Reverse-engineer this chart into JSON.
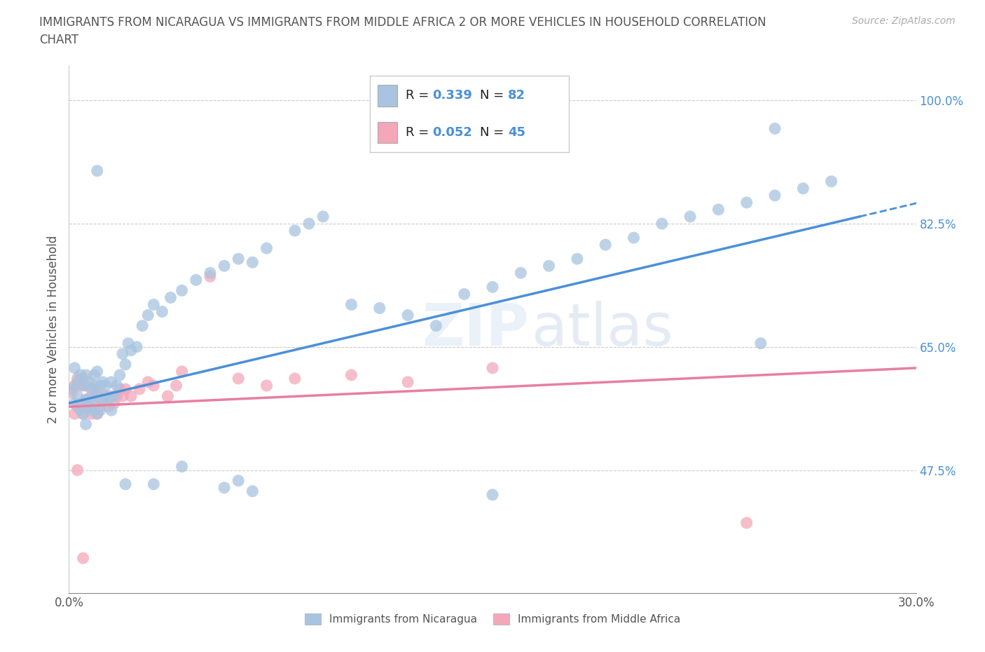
{
  "title": "IMMIGRANTS FROM NICARAGUA VS IMMIGRANTS FROM MIDDLE AFRICA 2 OR MORE VEHICLES IN HOUSEHOLD CORRELATION\nCHART",
  "source": "Source: ZipAtlas.com",
  "ylabel": "2 or more Vehicles in Household",
  "xmin": 0.0,
  "xmax": 0.3,
  "ymin": 0.3,
  "ymax": 1.05,
  "ytick_positions": [
    0.475,
    0.65,
    0.825,
    1.0
  ],
  "ytick_labels_right": [
    "47.5%",
    "65.0%",
    "82.5%",
    "100.0%"
  ],
  "xtick_positions": [
    0.0,
    0.05,
    0.1,
    0.15,
    0.2,
    0.25,
    0.3
  ],
  "xtick_labels": [
    "0.0%",
    "",
    "",
    "",
    "",
    "",
    "30.0%"
  ],
  "R_nicaragua": 0.339,
  "N_nicaragua": 82,
  "R_middle_africa": 0.052,
  "N_middle_africa": 45,
  "color_nicaragua": "#a8c4e0",
  "color_middle_africa": "#f4a7b9",
  "color_line_nicaragua": "#4a90d9",
  "color_line_middle_africa": "#e87fa0",
  "legend_labels": [
    "Immigrants from Nicaragua",
    "Immigrants from Middle Africa"
  ],
  "nicaragua_scatter_x": [
    0.001,
    0.002,
    0.002,
    0.003,
    0.003,
    0.004,
    0.004,
    0.005,
    0.005,
    0.006,
    0.006,
    0.006,
    0.007,
    0.007,
    0.008,
    0.008,
    0.008,
    0.009,
    0.009,
    0.01,
    0.01,
    0.01,
    0.011,
    0.011,
    0.012,
    0.012,
    0.013,
    0.013,
    0.014,
    0.015,
    0.015,
    0.016,
    0.017,
    0.018,
    0.019,
    0.02,
    0.021,
    0.022,
    0.024,
    0.026,
    0.028,
    0.03,
    0.033,
    0.036,
    0.04,
    0.045,
    0.05,
    0.055,
    0.06,
    0.065,
    0.07,
    0.08,
    0.085,
    0.09,
    0.1,
    0.11,
    0.12,
    0.13,
    0.14,
    0.15,
    0.16,
    0.17,
    0.18,
    0.19,
    0.2,
    0.21,
    0.22,
    0.23,
    0.24,
    0.25,
    0.26,
    0.27,
    0.02,
    0.03,
    0.04,
    0.055,
    0.065,
    0.15,
    0.25,
    0.245,
    0.01,
    0.06
  ],
  "nicaragua_scatter_y": [
    0.59,
    0.62,
    0.57,
    0.6,
    0.58,
    0.56,
    0.61,
    0.555,
    0.595,
    0.54,
    0.575,
    0.61,
    0.565,
    0.6,
    0.59,
    0.575,
    0.56,
    0.61,
    0.595,
    0.555,
    0.58,
    0.615,
    0.56,
    0.595,
    0.575,
    0.6,
    0.58,
    0.595,
    0.575,
    0.56,
    0.6,
    0.58,
    0.595,
    0.61,
    0.64,
    0.625,
    0.655,
    0.645,
    0.65,
    0.68,
    0.695,
    0.71,
    0.7,
    0.72,
    0.73,
    0.745,
    0.755,
    0.765,
    0.775,
    0.77,
    0.79,
    0.815,
    0.825,
    0.835,
    0.71,
    0.705,
    0.695,
    0.68,
    0.725,
    0.735,
    0.755,
    0.765,
    0.775,
    0.795,
    0.805,
    0.825,
    0.835,
    0.845,
    0.855,
    0.865,
    0.875,
    0.885,
    0.455,
    0.455,
    0.48,
    0.45,
    0.445,
    0.44,
    0.96,
    0.655,
    0.9,
    0.46
  ],
  "middle_africa_scatter_x": [
    0.001,
    0.002,
    0.002,
    0.003,
    0.003,
    0.004,
    0.004,
    0.005,
    0.005,
    0.006,
    0.006,
    0.007,
    0.008,
    0.008,
    0.009,
    0.009,
    0.01,
    0.01,
    0.011,
    0.012,
    0.013,
    0.014,
    0.015,
    0.016,
    0.017,
    0.018,
    0.019,
    0.02,
    0.022,
    0.025,
    0.028,
    0.03,
    0.035,
    0.038,
    0.04,
    0.06,
    0.07,
    0.08,
    0.1,
    0.12,
    0.15,
    0.24,
    0.003,
    0.05,
    0.005
  ],
  "middle_africa_scatter_y": [
    0.585,
    0.595,
    0.555,
    0.605,
    0.565,
    0.595,
    0.57,
    0.605,
    0.555,
    0.575,
    0.595,
    0.565,
    0.555,
    0.58,
    0.565,
    0.59,
    0.555,
    0.585,
    0.565,
    0.575,
    0.58,
    0.565,
    0.58,
    0.57,
    0.58,
    0.59,
    0.58,
    0.59,
    0.58,
    0.59,
    0.6,
    0.595,
    0.58,
    0.595,
    0.615,
    0.605,
    0.595,
    0.605,
    0.61,
    0.6,
    0.62,
    0.4,
    0.475,
    0.75,
    0.35
  ]
}
